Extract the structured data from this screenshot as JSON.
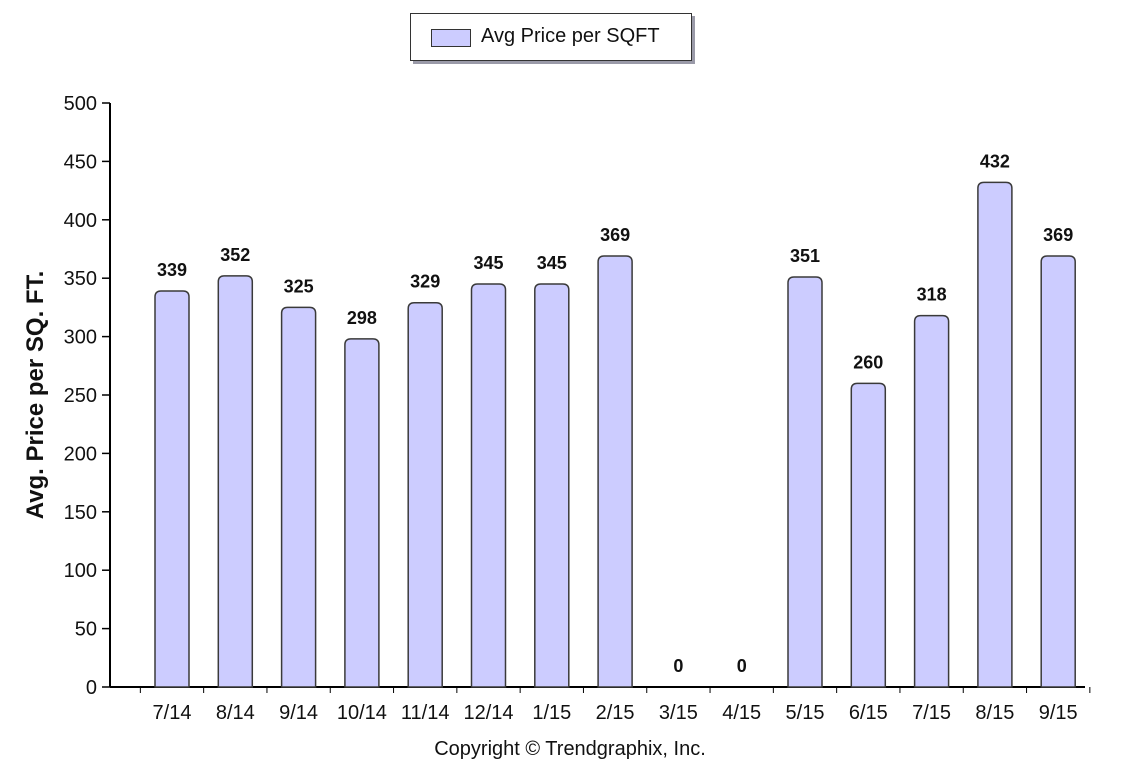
{
  "chart_data": {
    "type": "bar",
    "title": "",
    "categories": [
      "7/14",
      "8/14",
      "9/14",
      "10/14",
      "11/14",
      "12/14",
      "1/15",
      "2/15",
      "3/15",
      "4/15",
      "5/15",
      "6/15",
      "7/15",
      "8/15",
      "9/15"
    ],
    "series": [
      {
        "name": "Avg Price per SQFT",
        "values": [
          339,
          352,
          325,
          298,
          329,
          345,
          345,
          369,
          0,
          0,
          351,
          260,
          318,
          432,
          369
        ]
      }
    ],
    "data_labels": [
      "339",
      "352",
      "325",
      "298",
      "329",
      "345",
      "345",
      "369",
      "0",
      "0",
      "351",
      "260",
      "318",
      "432",
      "369"
    ],
    "ylabel": "Avg. Price per SQ. FT.",
    "xlabel": "",
    "ylim": [
      0,
      500
    ],
    "yticks": [
      0,
      50,
      100,
      150,
      200,
      250,
      300,
      350,
      400,
      450,
      500
    ],
    "grid": false,
    "legend_position": "top-center",
    "colors": {
      "bar_fill": "#ccccff",
      "bar_stroke": "#3a3a3a",
      "axis": "#000000",
      "text": "#111111"
    }
  },
  "legend": {
    "label": "Avg Price per SQFT"
  },
  "footer": {
    "copyright": "Copyright © Trendgraphix, Inc."
  }
}
